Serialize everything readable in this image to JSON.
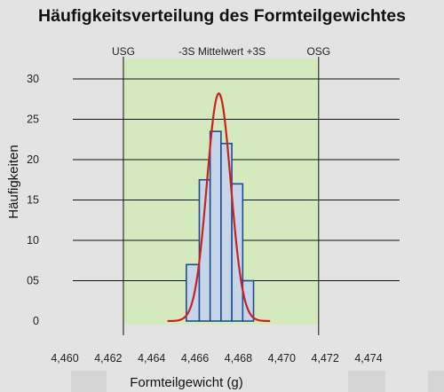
{
  "chart_data": {
    "type": "bar",
    "title": "Häufigkeitsverteilung des Formteilgewichtes",
    "xlabel": "Formteilgewicht (g)",
    "ylabel": "Häufigkeiten",
    "xlim": [
      4.46,
      4.475
    ],
    "ylim": [
      0,
      30
    ],
    "x_ticks": [
      "4,460",
      "4,462",
      "4,464",
      "4,466",
      "4,468",
      "4,470",
      "4,472",
      "4,474"
    ],
    "x_tick_values": [
      4.46,
      4.462,
      4.464,
      4.466,
      4.468,
      4.47,
      4.472,
      4.474
    ],
    "y_ticks": [
      "0",
      "05",
      "10",
      "15",
      "20",
      "25",
      "30"
    ],
    "y_tick_values": [
      0,
      5,
      10,
      15,
      20,
      25,
      30
    ],
    "gridlines": "horizontal",
    "bins": [
      {
        "x0": 4.4656,
        "x1": 4.4662,
        "value": 7
      },
      {
        "x0": 4.4662,
        "x1": 4.4667,
        "value": 17.5
      },
      {
        "x0": 4.4667,
        "x1": 4.4672,
        "value": 23.5
      },
      {
        "x0": 4.4672,
        "x1": 4.4677,
        "value": 22
      },
      {
        "x0": 4.4677,
        "x1": 4.4682,
        "value": 17
      },
      {
        "x0": 4.4682,
        "x1": 4.4687,
        "value": 5
      }
    ],
    "normal_curve": {
      "mean": 4.4671,
      "sd": 0.00055,
      "peak": 28.2
    },
    "limits": [
      {
        "label": "USG",
        "x": 4.4627
      },
      {
        "label": "OSG",
        "x": 4.4717
      }
    ],
    "tolerance_band": [
      4.4627,
      4.4717
    ],
    "center_label": "-3S Mittelwert +3S",
    "colors": {
      "bar_fill": "#c6d6ea",
      "bar_stroke": "#1f4d8f",
      "curve": "#cc1f1f",
      "band": "#d4e9bd",
      "grid": "#111111",
      "background": "#e3e3e3"
    }
  }
}
